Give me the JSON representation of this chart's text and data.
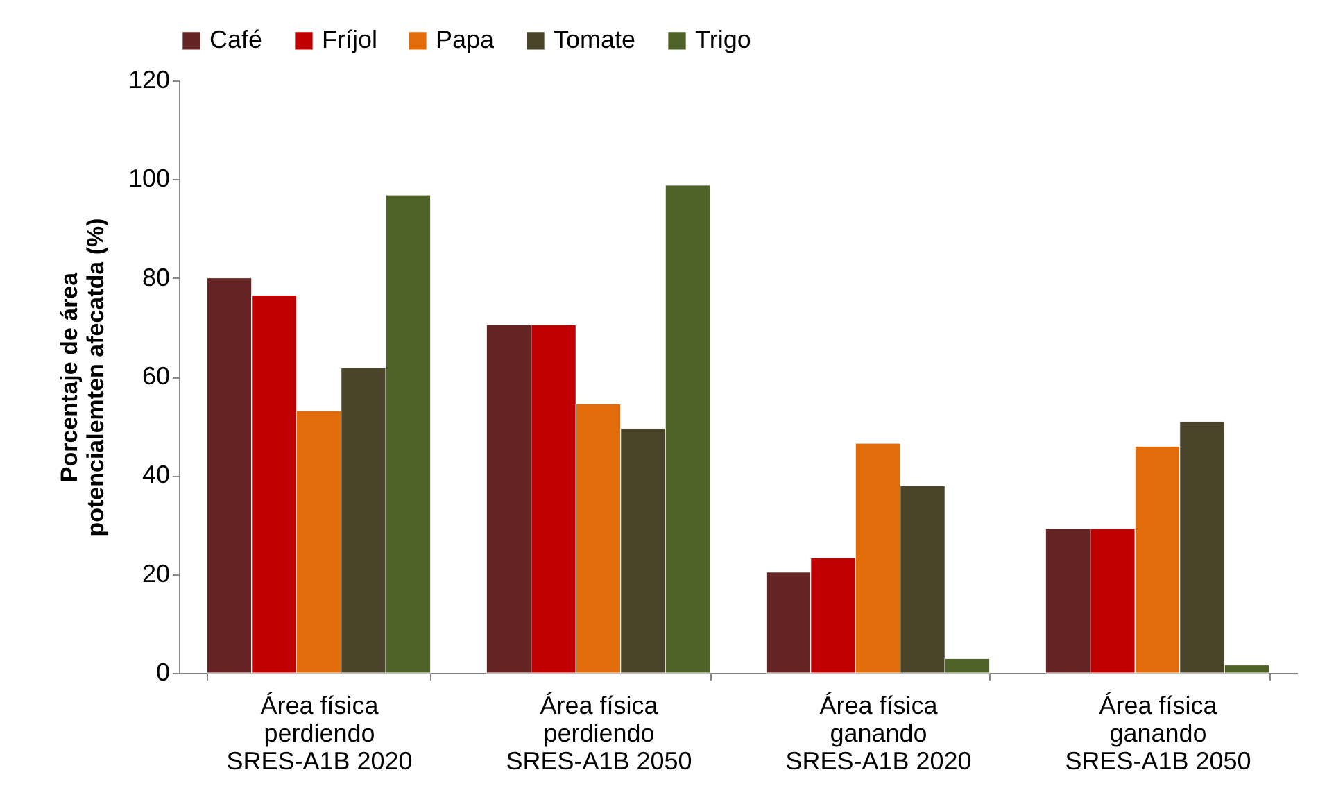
{
  "chart_data": {
    "type": "bar",
    "ylabel": "Porcentaje de área potencialemten afecatda (%)",
    "categories": [
      "Área física perdiendo SRES-A1B 2020",
      "Área física perdiendo SRES-A1B 2050",
      "Área física ganando SRES-A1B 2020",
      "Área física ganando SRES-A1B 2050"
    ],
    "series": [
      {
        "name": "Café",
        "color": "#632423",
        "values": [
          80.0,
          70.5,
          20.4,
          29.2
        ]
      },
      {
        "name": "Fríjol",
        "color": "#c00000",
        "values": [
          76.5,
          70.5,
          23.3,
          29.2
        ]
      },
      {
        "name": "Papa",
        "color": "#e36c0a",
        "values": [
          53.1,
          54.5,
          46.5,
          45.9
        ]
      },
      {
        "name": "Tomate",
        "color": "#4a452a",
        "values": [
          61.8,
          49.5,
          37.9,
          50.9
        ]
      },
      {
        "name": "Trigo",
        "color": "#4f6228",
        "values": [
          96.8,
          98.8,
          2.9,
          1.6
        ]
      }
    ],
    "ylim": [
      0,
      120
    ],
    "yticks": [
      0,
      20,
      40,
      60,
      80,
      100,
      120
    ],
    "grid": false,
    "legend": "top"
  }
}
